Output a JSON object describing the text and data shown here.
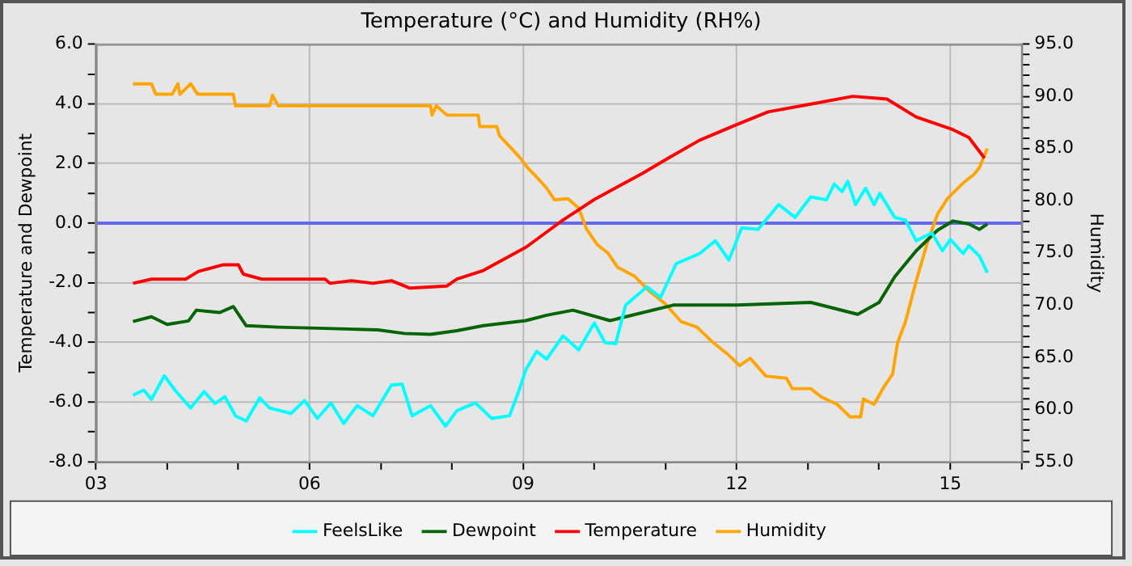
{
  "chart_data": {
    "type": "line",
    "title": "Temperature (°C) and Humidity (RH%)",
    "ylabel": "Temperature and Dewpoint",
    "y2label": "Humidity",
    "xlim": [
      3,
      16
    ],
    "xticks": [
      {
        "value": 3,
        "label": "03"
      },
      {
        "value": 4,
        "label": null
      },
      {
        "value": 5,
        "label": null
      },
      {
        "value": 6,
        "label": "06"
      },
      {
        "value": 7,
        "label": null
      },
      {
        "value": 8,
        "label": null
      },
      {
        "value": 9,
        "label": "09"
      },
      {
        "value": 10,
        "label": null
      },
      {
        "value": 11,
        "label": null
      },
      {
        "value": 12,
        "label": "12"
      },
      {
        "value": 13,
        "label": null
      },
      {
        "value": 14,
        "label": null
      },
      {
        "value": 15,
        "label": "15"
      },
      {
        "value": 16,
        "label": null
      }
    ],
    "ylim": [
      -8,
      6
    ],
    "yticks": [
      {
        "value": -8,
        "label": "-8.0"
      },
      {
        "value": -7,
        "label": null
      },
      {
        "value": -6,
        "label": "-6.0"
      },
      {
        "value": -5,
        "label": null
      },
      {
        "value": -4,
        "label": "-4.0"
      },
      {
        "value": -3,
        "label": null
      },
      {
        "value": -2,
        "label": "-2.0"
      },
      {
        "value": -1,
        "label": null
      },
      {
        "value": 0,
        "label": "0.0"
      },
      {
        "value": 1,
        "label": null
      },
      {
        "value": 2,
        "label": "2.0"
      },
      {
        "value": 3,
        "label": null
      },
      {
        "value": 4,
        "label": "4.0"
      },
      {
        "value": 5,
        "label": null
      },
      {
        "value": 6,
        "label": "6.0"
      }
    ],
    "y2lim": [
      55,
      95
    ],
    "y2ticks": [
      {
        "value": 55,
        "label": "55.0"
      },
      {
        "value": 56,
        "label": null
      },
      {
        "value": 57,
        "label": null
      },
      {
        "value": 58,
        "label": null
      },
      {
        "value": 59,
        "label": null
      },
      {
        "value": 60,
        "label": "60.0"
      },
      {
        "value": 61,
        "label": null
      },
      {
        "value": 62,
        "label": null
      },
      {
        "value": 63,
        "label": null
      },
      {
        "value": 64,
        "label": null
      },
      {
        "value": 65,
        "label": "65.0"
      },
      {
        "value": 66,
        "label": null
      },
      {
        "value": 67,
        "label": null
      },
      {
        "value": 68,
        "label": null
      },
      {
        "value": 69,
        "label": null
      },
      {
        "value": 70,
        "label": "70.0"
      },
      {
        "value": 71,
        "label": null
      },
      {
        "value": 72,
        "label": null
      },
      {
        "value": 73,
        "label": null
      },
      {
        "value": 74,
        "label": null
      },
      {
        "value": 75,
        "label": "75.0"
      },
      {
        "value": 76,
        "label": null
      },
      {
        "value": 77,
        "label": null
      },
      {
        "value": 78,
        "label": null
      },
      {
        "value": 79,
        "label": null
      },
      {
        "value": 80,
        "label": "80.0"
      },
      {
        "value": 81,
        "label": null
      },
      {
        "value": 82,
        "label": null
      },
      {
        "value": 83,
        "label": null
      },
      {
        "value": 84,
        "label": null
      },
      {
        "value": 85,
        "label": "85.0"
      },
      {
        "value": 86,
        "label": null
      },
      {
        "value": 87,
        "label": null
      },
      {
        "value": 88,
        "label": null
      },
      {
        "value": 89,
        "label": null
      },
      {
        "value": 90,
        "label": "90.0"
      },
      {
        "value": 91,
        "label": null
      },
      {
        "value": 92,
        "label": null
      },
      {
        "value": 93,
        "label": null
      },
      {
        "value": 94,
        "label": null
      },
      {
        "value": 95,
        "label": "95.0"
      }
    ],
    "grid": true,
    "legend": "bottom",
    "marker": "none",
    "line_style": "solid",
    "ref_lines": [
      {
        "axis": "y",
        "value": 0,
        "color": "#6666ee"
      }
    ],
    "series": [
      {
        "name": "FeelsLike",
        "color": "#00ffff",
        "x": [
          3.52,
          3.67,
          3.78,
          3.96,
          4.11,
          4.33,
          4.52,
          4.67,
          4.81,
          4.96,
          5.11,
          5.3,
          5.44,
          5.74,
          5.93,
          6.11,
          6.3,
          6.48,
          6.67,
          6.89,
          7.15,
          7.3,
          7.44,
          7.7,
          7.91,
          8.07,
          8.33,
          8.56,
          8.81,
          8.93,
          9.04,
          9.19,
          9.33,
          9.56,
          9.78,
          10.0,
          10.15,
          10.3,
          10.44,
          10.74,
          10.93,
          11.15,
          11.48,
          11.7,
          11.89,
          12.07,
          12.3,
          12.59,
          12.82,
          13.04,
          13.26,
          13.37,
          13.48,
          13.56,
          13.67,
          13.81,
          13.93,
          14.01,
          14.22,
          14.37,
          14.52,
          14.74,
          14.89,
          15.0,
          15.18,
          15.26,
          15.41,
          15.52
        ],
        "values": [
          -5.77,
          -5.6,
          -5.91,
          -5.12,
          -5.6,
          -6.2,
          -5.65,
          -6.05,
          -5.82,
          -6.46,
          -6.64,
          -5.86,
          -6.2,
          -6.38,
          -5.95,
          -6.55,
          -6.03,
          -6.72,
          -6.12,
          -6.46,
          -5.43,
          -5.4,
          -6.46,
          -6.12,
          -6.81,
          -6.29,
          -6.03,
          -6.55,
          -6.46,
          -5.69,
          -4.91,
          -4.3,
          -4.56,
          -3.78,
          -4.25,
          -3.35,
          -4.01,
          -4.04,
          -2.75,
          -2.14,
          -2.49,
          -1.36,
          -1.02,
          -0.59,
          -1.24,
          -0.16,
          -0.21,
          0.62,
          0.19,
          0.88,
          0.78,
          1.31,
          1.05,
          1.4,
          0.62,
          1.17,
          0.62,
          1.0,
          0.19,
          0.1,
          -0.59,
          -0.33,
          -0.93,
          -0.55,
          -1.02,
          -0.76,
          -1.11,
          -1.66
        ]
      },
      {
        "name": "Dewpoint",
        "color": "#006400",
        "x": [
          3.52,
          3.78,
          4.0,
          4.3,
          4.41,
          4.74,
          4.93,
          5.11,
          5.56,
          6.22,
          6.96,
          7.33,
          7.7,
          8.07,
          8.44,
          9.04,
          9.33,
          9.7,
          10.22,
          11.11,
          12.0,
          13.04,
          13.7,
          14.0,
          14.22,
          14.52,
          14.82,
          15.04,
          15.26,
          15.41,
          15.52
        ],
        "values": [
          -3.3,
          -3.14,
          -3.4,
          -3.28,
          -2.92,
          -3.0,
          -2.8,
          -3.44,
          -3.49,
          -3.53,
          -3.58,
          -3.7,
          -3.73,
          -3.61,
          -3.44,
          -3.27,
          -3.09,
          -2.92,
          -3.27,
          -2.75,
          -2.75,
          -2.66,
          -3.06,
          -2.66,
          -1.8,
          -0.93,
          -0.24,
          0.07,
          -0.03,
          -0.21,
          -0.03
        ]
      },
      {
        "name": "Temperature",
        "color": "#ff0000",
        "x": [
          3.52,
          3.78,
          4.26,
          4.44,
          4.78,
          5.0,
          5.07,
          5.33,
          6.22,
          6.29,
          6.59,
          6.89,
          7.15,
          7.41,
          7.93,
          8.07,
          8.44,
          8.81,
          9.04,
          9.33,
          9.56,
          10.0,
          10.67,
          11.04,
          11.48,
          12.0,
          12.44,
          13.04,
          13.63,
          14.11,
          14.52,
          15.04,
          15.26,
          15.48
        ],
        "values": [
          -2.02,
          -1.88,
          -1.88,
          -1.62,
          -1.4,
          -1.4,
          -1.71,
          -1.88,
          -1.88,
          -2.02,
          -1.93,
          -2.02,
          -1.93,
          -2.18,
          -2.11,
          -1.88,
          -1.59,
          -1.11,
          -0.81,
          -0.3,
          0.1,
          0.79,
          1.66,
          2.18,
          2.78,
          3.3,
          3.73,
          3.99,
          4.25,
          4.16,
          3.56,
          3.13,
          2.87,
          2.18
        ]
      },
      {
        "name": "Humidity",
        "color": "#ffa500",
        "axis": "y2",
        "x": [
          3.52,
          3.78,
          3.84,
          4.07,
          4.15,
          4.18,
          4.33,
          4.43,
          4.93,
          4.96,
          5.44,
          5.48,
          5.56,
          5.7,
          7.7,
          7.72,
          7.78,
          7.93,
          8.37,
          8.39,
          8.63,
          8.67,
          8.81,
          8.96,
          9.07,
          9.24,
          9.33,
          9.44,
          9.63,
          9.78,
          9.89,
          10.04,
          10.19,
          10.33,
          10.56,
          10.78,
          11.0,
          11.22,
          11.44,
          11.67,
          11.89,
          12.04,
          12.19,
          12.41,
          12.7,
          12.78,
          13.04,
          13.19,
          13.41,
          13.59,
          13.74,
          13.78,
          13.93,
          14.07,
          14.19,
          14.26,
          14.37,
          14.52,
          14.67,
          14.82,
          14.96,
          15.18,
          15.33,
          15.41,
          15.52
        ],
        "values": [
          91.2,
          91.2,
          90.2,
          90.2,
          91.2,
          90.2,
          91.2,
          90.2,
          90.2,
          89.1,
          89.1,
          90.1,
          89.1,
          89.1,
          89.1,
          88.2,
          89.1,
          88.2,
          88.2,
          87.1,
          87.1,
          86.2,
          85.2,
          84.1,
          83.1,
          81.9,
          81.2,
          80.1,
          80.2,
          79.3,
          77.3,
          75.8,
          75.0,
          73.6,
          72.8,
          71.3,
          70.1,
          68.4,
          67.9,
          66.4,
          65.2,
          64.2,
          64.9,
          63.2,
          63.0,
          62.0,
          62.0,
          61.2,
          60.5,
          59.3,
          59.3,
          61.0,
          60.5,
          62.2,
          63.4,
          66.4,
          68.4,
          72.3,
          75.8,
          78.7,
          80.2,
          81.7,
          82.5,
          83.2,
          85.0
        ]
      }
    ]
  }
}
